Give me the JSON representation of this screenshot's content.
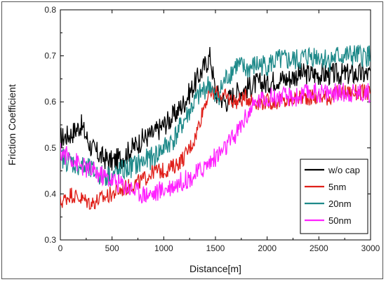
{
  "chart_data": {
    "type": "line",
    "xlabel": "Distance[m]",
    "ylabel": "Friction Coefficient",
    "xlim": [
      0,
      3000
    ],
    "ylim": [
      0.3,
      0.8
    ],
    "xticks": [
      0,
      500,
      1000,
      1500,
      2000,
      2500,
      3000
    ],
    "yticks": [
      0.3,
      0.4,
      0.5,
      0.6,
      0.7,
      0.8
    ],
    "grid": false,
    "legend_position": "bottom-right",
    "x": [
      0,
      100,
      200,
      300,
      400,
      500,
      600,
      700,
      800,
      900,
      1000,
      1100,
      1200,
      1300,
      1400,
      1450,
      1500,
      1600,
      1700,
      1800,
      1900,
      2000,
      2100,
      2200,
      2300,
      2400,
      2500,
      2600,
      2700,
      2800,
      2900,
      3000
    ],
    "series": [
      {
        "name": "w/o cap",
        "color": "#000000",
        "noise": 0.025,
        "values": [
          0.52,
          0.53,
          0.55,
          0.5,
          0.48,
          0.47,
          0.48,
          0.5,
          0.52,
          0.53,
          0.55,
          0.57,
          0.6,
          0.64,
          0.68,
          0.7,
          0.62,
          0.6,
          0.62,
          0.63,
          0.64,
          0.64,
          0.65,
          0.65,
          0.66,
          0.66,
          0.66,
          0.66,
          0.66,
          0.66,
          0.66,
          0.66
        ]
      },
      {
        "name": "5nm",
        "color": "#e0201a",
        "noise": 0.018,
        "values": [
          0.38,
          0.4,
          0.39,
          0.38,
          0.39,
          0.4,
          0.41,
          0.42,
          0.43,
          0.45,
          0.45,
          0.46,
          0.48,
          0.52,
          0.6,
          0.62,
          0.62,
          0.61,
          0.6,
          0.61,
          0.6,
          0.6,
          0.6,
          0.6,
          0.61,
          0.61,
          0.61,
          0.61,
          0.62,
          0.62,
          0.62,
          0.62
        ]
      },
      {
        "name": "20nm",
        "color": "#1f8a8a",
        "noise": 0.025,
        "values": [
          0.48,
          0.47,
          0.46,
          0.45,
          0.44,
          0.44,
          0.45,
          0.46,
          0.47,
          0.48,
          0.5,
          0.52,
          0.56,
          0.6,
          0.63,
          0.64,
          0.6,
          0.65,
          0.68,
          0.67,
          0.68,
          0.68,
          0.69,
          0.69,
          0.69,
          0.7,
          0.7,
          0.69,
          0.7,
          0.7,
          0.7,
          0.7
        ]
      },
      {
        "name": "50nm",
        "color": "#ff22ff",
        "noise": 0.022,
        "values": [
          0.49,
          0.48,
          0.46,
          0.45,
          0.44,
          0.43,
          0.42,
          0.41,
          0.4,
          0.4,
          0.41,
          0.42,
          0.43,
          0.44,
          0.46,
          0.47,
          0.48,
          0.5,
          0.53,
          0.57,
          0.6,
          0.61,
          0.61,
          0.61,
          0.61,
          0.62,
          0.62,
          0.62,
          0.62,
          0.62,
          0.62,
          0.62
        ]
      }
    ]
  }
}
